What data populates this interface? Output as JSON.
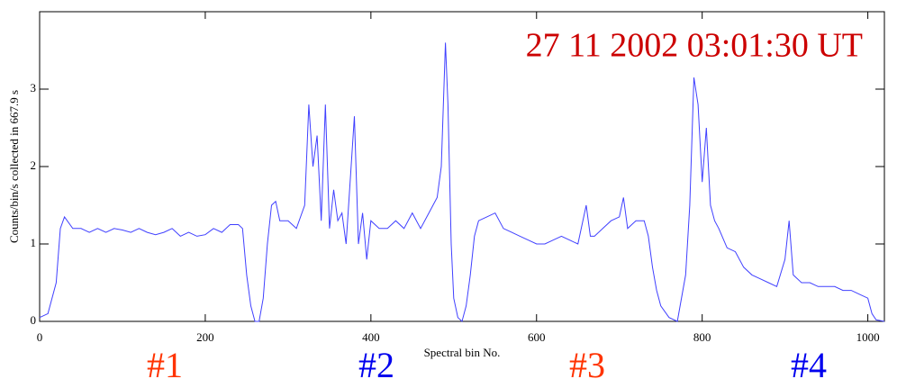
{
  "chart_data": {
    "type": "line",
    "title": "27 11 2002   03:01:30 UT",
    "title_color": "#cc0000",
    "x_label": "Spectral bin No.",
    "y_label": "Counts/bin/s collected in    667.9 s",
    "annotations": [
      {
        "text": "#1",
        "color": "#ff3300"
      },
      {
        "text": "#2",
        "color": "#0000ee"
      },
      {
        "text": "#3",
        "color": "#ff3300"
      },
      {
        "text": "#4",
        "color": "#0000ee"
      }
    ],
    "color": "#4040ff",
    "xlim": [
      0,
      1020
    ],
    "ylim": [
      0,
      4
    ],
    "xticks": [
      0,
      200,
      400,
      600,
      800,
      1000
    ],
    "yticks": [
      0,
      1,
      2,
      3
    ],
    "x": [
      0,
      10,
      20,
      25,
      30,
      40,
      50,
      60,
      70,
      80,
      90,
      100,
      110,
      120,
      130,
      140,
      150,
      160,
      170,
      180,
      190,
      200,
      210,
      220,
      230,
      240,
      245,
      250,
      255,
      260,
      265,
      270,
      275,
      280,
      285,
      290,
      300,
      310,
      320,
      325,
      330,
      335,
      340,
      345,
      350,
      355,
      360,
      365,
      370,
      380,
      385,
      390,
      395,
      400,
      410,
      420,
      430,
      440,
      450,
      460,
      470,
      480,
      485,
      490,
      493,
      497,
      500,
      505,
      510,
      515,
      520,
      525,
      530,
      540,
      550,
      560,
      570,
      580,
      590,
      600,
      610,
      620,
      630,
      640,
      650,
      660,
      665,
      670,
      680,
      690,
      700,
      705,
      710,
      715,
      720,
      730,
      735,
      740,
      745,
      750,
      760,
      770,
      780,
      785,
      790,
      795,
      800,
      805,
      810,
      815,
      820,
      830,
      840,
      850,
      860,
      870,
      880,
      890,
      900,
      905,
      910,
      920,
      930,
      940,
      950,
      960,
      970,
      980,
      990,
      1000,
      1005,
      1010,
      1020
    ],
    "values": [
      0.05,
      0.1,
      0.5,
      1.2,
      1.35,
      1.2,
      1.2,
      1.15,
      1.2,
      1.15,
      1.2,
      1.18,
      1.15,
      1.2,
      1.15,
      1.12,
      1.15,
      1.2,
      1.1,
      1.15,
      1.1,
      1.12,
      1.2,
      1.15,
      1.25,
      1.25,
      1.2,
      0.6,
      0.2,
      0.0,
      0.0,
      0.3,
      1.0,
      1.5,
      1.55,
      1.3,
      1.3,
      1.2,
      1.5,
      2.8,
      2.0,
      2.4,
      1.3,
      2.8,
      1.2,
      1.7,
      1.3,
      1.4,
      1.0,
      2.65,
      1.0,
      1.4,
      0.8,
      1.3,
      1.2,
      1.2,
      1.3,
      1.2,
      1.4,
      1.2,
      1.4,
      1.6,
      2.0,
      3.6,
      2.8,
      1.0,
      0.3,
      0.05,
      0.0,
      0.2,
      0.6,
      1.1,
      1.3,
      1.35,
      1.4,
      1.2,
      1.15,
      1.1,
      1.05,
      1.0,
      1.0,
      1.05,
      1.1,
      1.05,
      1.0,
      1.5,
      1.1,
      1.1,
      1.2,
      1.3,
      1.35,
      1.6,
      1.2,
      1.25,
      1.3,
      1.3,
      1.1,
      0.7,
      0.4,
      0.2,
      0.05,
      0.0,
      0.6,
      1.5,
      3.15,
      2.8,
      1.8,
      2.5,
      1.5,
      1.3,
      1.2,
      0.95,
      0.9,
      0.7,
      0.6,
      0.55,
      0.5,
      0.45,
      0.8,
      1.3,
      0.6,
      0.5,
      0.5,
      0.45,
      0.45,
      0.45,
      0.4,
      0.4,
      0.35,
      0.3,
      0.1,
      0.02,
      0.0
    ]
  }
}
